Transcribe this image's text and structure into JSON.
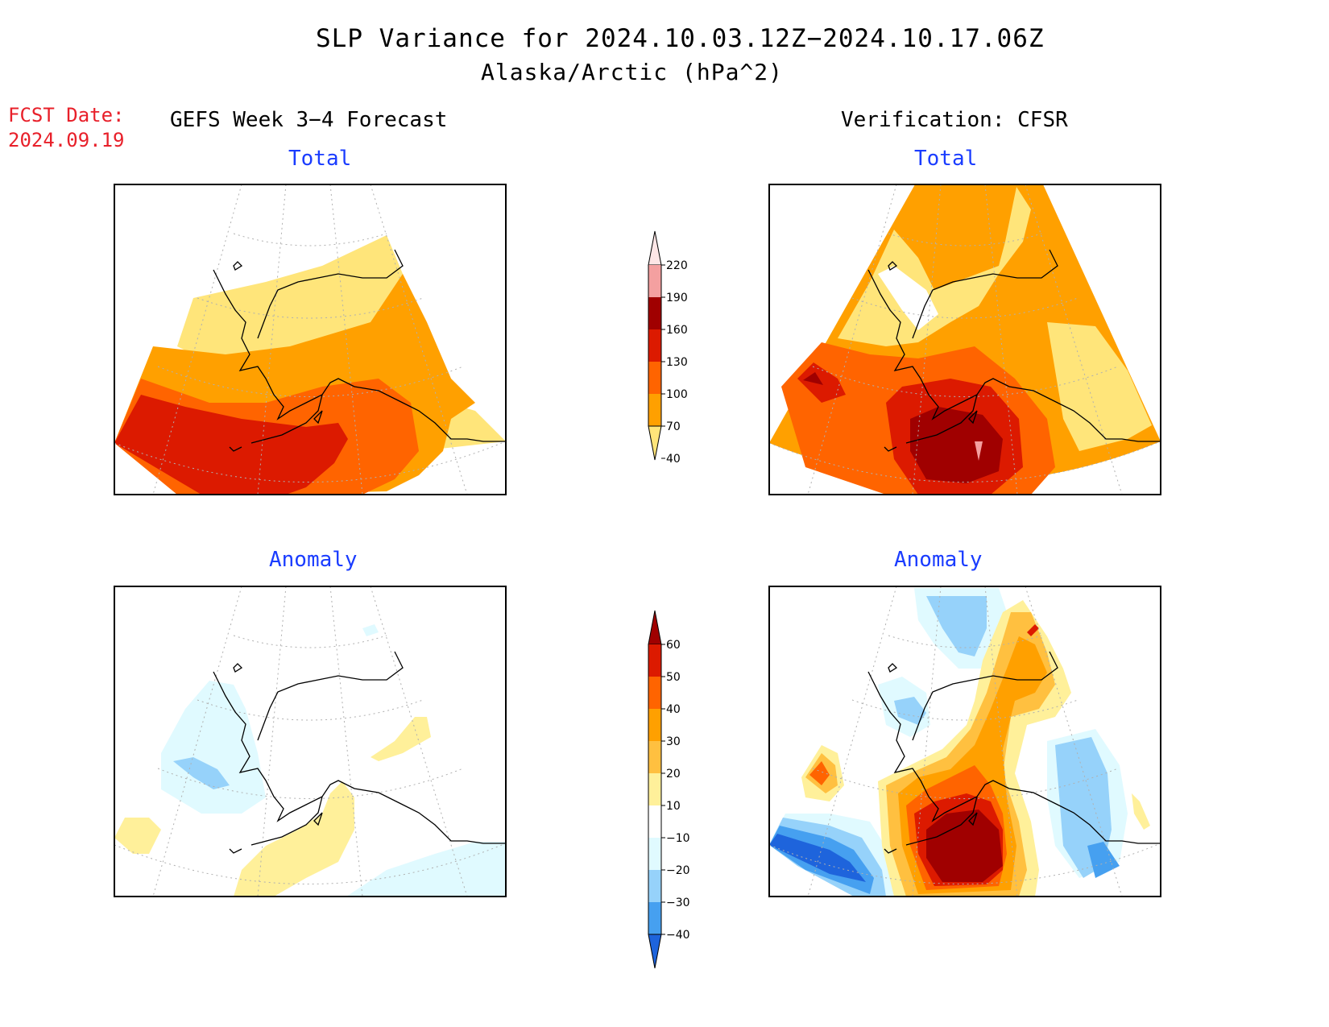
{
  "title": "SLP Variance for 2024.10.03.12Z−2024.10.17.06Z",
  "subtitle": "Alaska/Arctic (hPa^2)",
  "fcst_date": {
    "label": "FCST Date:",
    "value": "2024.09.19"
  },
  "panels": {
    "forecast_header": "GEFS Week 3−4 Forecast",
    "verification_header": "Verification: CFSR",
    "total_label": "Total",
    "anomaly_label": "Anomaly"
  },
  "colorbars": {
    "total": {
      "labels": [
        "220",
        "190",
        "160",
        "130",
        "100",
        "70",
        "40"
      ],
      "colors": [
        "#fde6e6",
        "#f4a0a0",
        "#a00000",
        "#dc1a00",
        "#ff6400",
        "#ffa000",
        "#ffe57a"
      ]
    },
    "anomaly": {
      "labels": [
        "60",
        "50",
        "40",
        "30",
        "20",
        "10",
        "−10",
        "−20",
        "−30",
        "−40"
      ],
      "colors": [
        "#a00000",
        "#dc1a00",
        "#ff6400",
        "#ffa000",
        "#ffc040",
        "#fff09a",
        "#ffffff",
        "#e0faff",
        "#96d2fa",
        "#46a0f0",
        "#1e64dc"
      ]
    }
  },
  "colors": {
    "title_text": "#000000",
    "panel_type_text": "#1a3cff",
    "fcst_text": "#e8202a"
  }
}
